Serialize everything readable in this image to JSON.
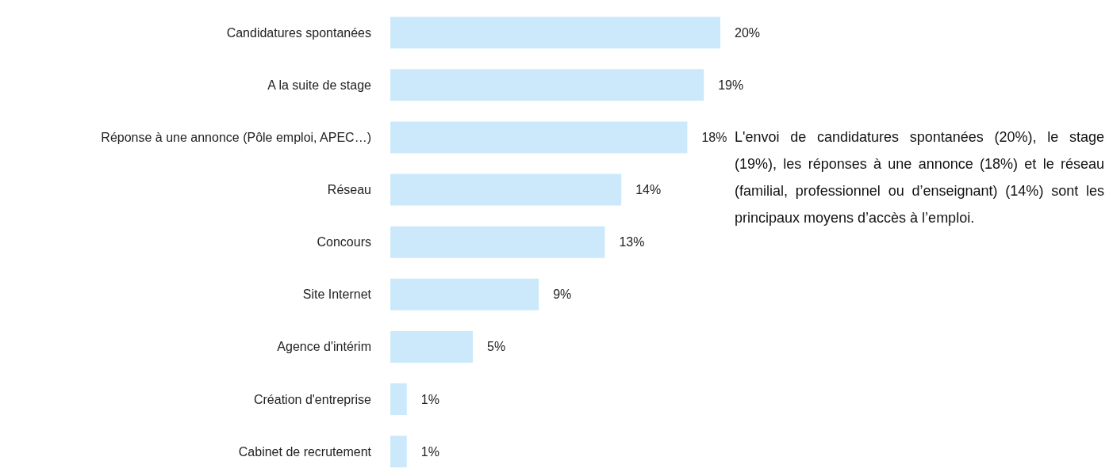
{
  "chart_data": {
    "type": "bar",
    "orientation": "horizontal",
    "categories": [
      "Candidatures spontanées",
      "A la suite de stage",
      "Réponse à une annonce (Pôle emploi, APEC…)",
      "Réseau",
      "Concours",
      "Site Internet",
      "Agence d'intérim",
      "Création d'entreprise",
      "Cabinet de recrutement"
    ],
    "values": [
      20,
      19,
      18,
      14,
      13,
      9,
      5,
      1,
      1
    ],
    "value_labels": [
      "20%",
      "19%",
      "18%",
      "14%",
      "13%",
      "9%",
      "5%",
      "1%",
      "1%"
    ],
    "color": "#cce9fb",
    "annotations": [
      "L'envoi de candidatures spontanées (20%), le stage (19%), les réponses à une annonce (18%) et le réseau (familial, professionnel ou d’enseignant) (14%) sont les principaux moyens d’accès à l’emploi."
    ]
  }
}
